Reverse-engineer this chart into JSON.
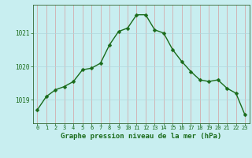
{
  "hours": [
    0,
    1,
    2,
    3,
    4,
    5,
    6,
    7,
    8,
    9,
    10,
    11,
    12,
    13,
    14,
    15,
    16,
    17,
    18,
    19,
    20,
    21,
    22,
    23
  ],
  "pressure": [
    1018.7,
    1019.1,
    1019.3,
    1019.4,
    1019.55,
    1019.9,
    1019.95,
    1020.1,
    1020.65,
    1021.05,
    1021.15,
    1021.55,
    1021.55,
    1021.1,
    1021.0,
    1020.5,
    1020.15,
    1019.85,
    1019.6,
    1019.55,
    1019.6,
    1019.35,
    1019.2,
    1018.55
  ],
  "line_color": "#1a6b1a",
  "bg_color": "#c8eef0",
  "vert_grid_color": "#d4a0a0",
  "horiz_grid_color": "#b0d8dc",
  "ylabel_ticks": [
    1019,
    1020,
    1021
  ],
  "ylim": [
    1018.3,
    1021.85
  ],
  "xlim": [
    -0.5,
    23.5
  ],
  "xlabel": "Graphe pression niveau de la mer (hPa)",
  "xlabel_fontsize": 6.5,
  "tick_fontsize": 5.5,
  "line_width": 1.0,
  "marker_size": 2.5,
  "fig_width": 3.2,
  "fig_height": 2.0,
  "dpi": 100
}
